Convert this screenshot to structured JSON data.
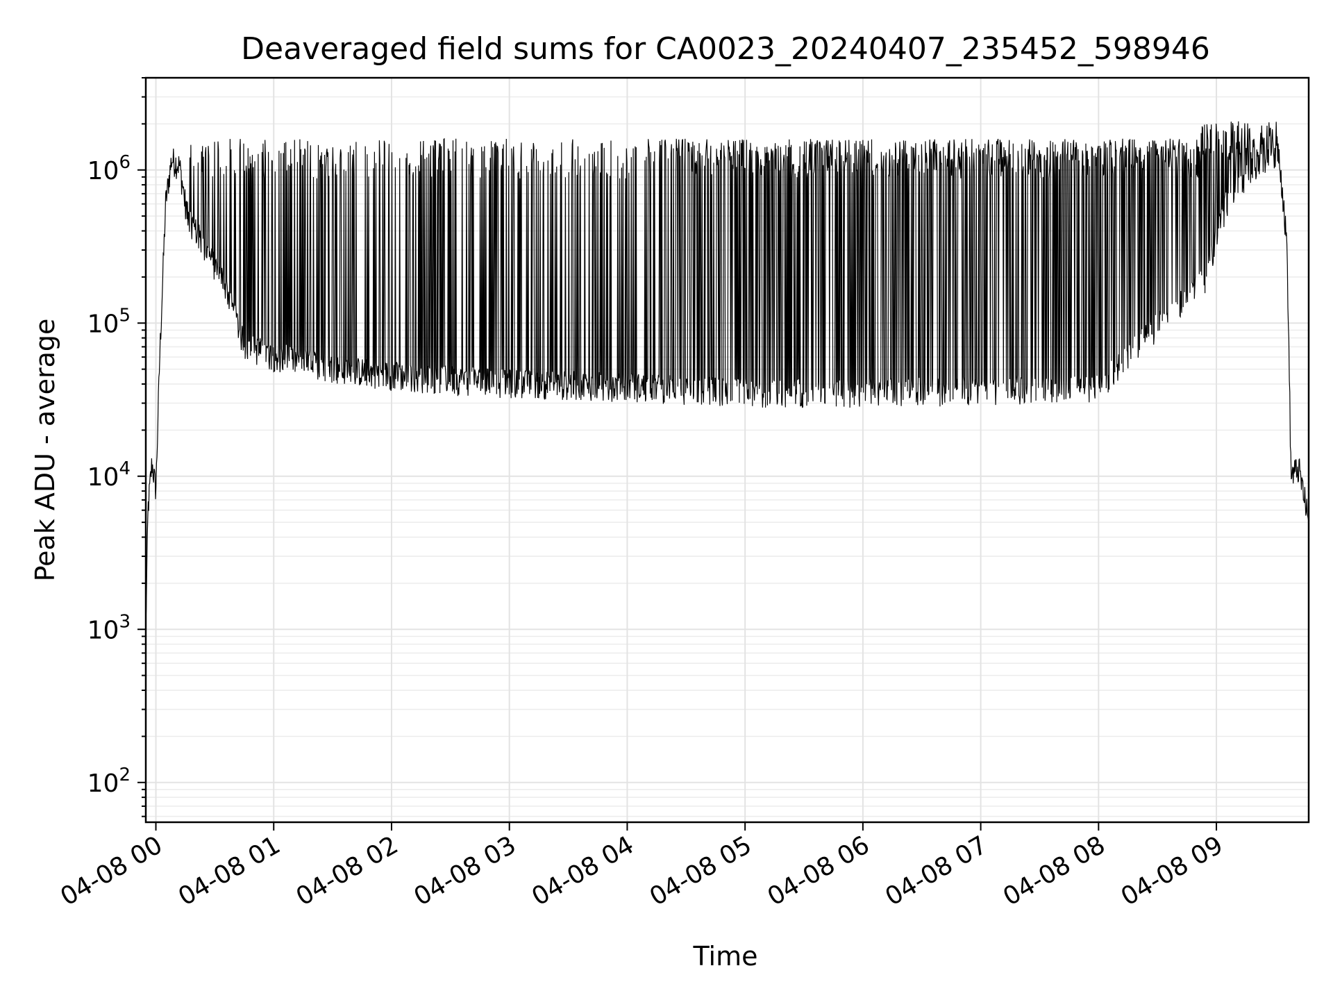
{
  "chart_data": {
    "type": "line",
    "title": "Deaveraged field sums for CA0023_20240407_235452_598946",
    "xlabel": "Time",
    "ylabel": "Peak ADU - average",
    "yscale": "log",
    "grid": true,
    "ylim": [
      55,
      4000000
    ],
    "xlim": [
      "2024-04-07 23:54:52",
      "2024-04-08 09:47:00"
    ],
    "x_ticks": [
      "04-08 00",
      "04-08 01",
      "04-08 02",
      "04-08 03",
      "04-08 04",
      "04-08 05",
      "04-08 06",
      "04-08 07",
      "04-08 08",
      "04-08 09"
    ],
    "y_ticks": [
      {
        "base": "10",
        "exp": "2",
        "value": 100
      },
      {
        "base": "10",
        "exp": "3",
        "value": 1000
      },
      {
        "base": "10",
        "exp": "4",
        "value": 10000
      },
      {
        "base": "10",
        "exp": "5",
        "value": 100000
      },
      {
        "base": "10",
        "exp": "6",
        "value": 1000000
      }
    ],
    "series": [
      {
        "color": "#000000",
        "baseline": [
          {
            "x": "2024-04-07 23:54:52",
            "y": 1000
          },
          {
            "x": "2024-04-07 23:56:00",
            "y": 6000
          },
          {
            "x": "2024-04-07 23:58:00",
            "y": 12000
          },
          {
            "x": "2024-04-08 00:00:00",
            "y": 8000
          },
          {
            "x": "2024-04-08 00:02:00",
            "y": 60000
          },
          {
            "x": "2024-04-08 00:05:00",
            "y": 600000
          },
          {
            "x": "2024-04-08 00:08:00",
            "y": 1150000
          },
          {
            "x": "2024-04-08 00:12:00",
            "y": 1050000
          },
          {
            "x": "2024-04-08 00:16:00",
            "y": 500000
          },
          {
            "x": "2024-04-08 00:25:00",
            "y": 300000
          },
          {
            "x": "2024-04-08 00:35:00",
            "y": 180000
          },
          {
            "x": "2024-04-08 00:45:00",
            "y": 70000
          },
          {
            "x": "2024-04-08 01:00:00",
            "y": 60000
          },
          {
            "x": "2024-04-08 01:30:00",
            "y": 50000
          },
          {
            "x": "2024-04-08 02:00:00",
            "y": 45000
          },
          {
            "x": "2024-04-08 02:30:00",
            "y": 42000
          },
          {
            "x": "2024-04-08 03:00:00",
            "y": 40000
          },
          {
            "x": "2024-04-08 04:00:00",
            "y": 38000
          },
          {
            "x": "2024-04-08 05:00:00",
            "y": 35000
          },
          {
            "x": "2024-04-08 06:00:00",
            "y": 35000
          },
          {
            "x": "2024-04-08 07:00:00",
            "y": 36000
          },
          {
            "x": "2024-04-08 08:00:00",
            "y": 38000
          },
          {
            "x": "2024-04-08 08:55:00",
            "y": 200000
          },
          {
            "x": "2024-04-08 09:05:00",
            "y": 600000
          },
          {
            "x": "2024-04-08 09:15:00",
            "y": 900000
          },
          {
            "x": "2024-04-08 09:25:00",
            "y": 1200000
          },
          {
            "x": "2024-04-08 09:32:00",
            "y": 1300000
          },
          {
            "x": "2024-04-08 09:36:00",
            "y": 300000
          },
          {
            "x": "2024-04-08 09:38:00",
            "y": 10000
          },
          {
            "x": "2024-04-08 09:42:00",
            "y": 11000
          },
          {
            "x": "2024-04-08 09:47:00",
            "y": 5000
          }
        ],
        "spike_peak": 1600000,
        "notes": "Dense spikes between baseline and ~1.5e6 from 00:15 to 09:30"
      }
    ]
  }
}
